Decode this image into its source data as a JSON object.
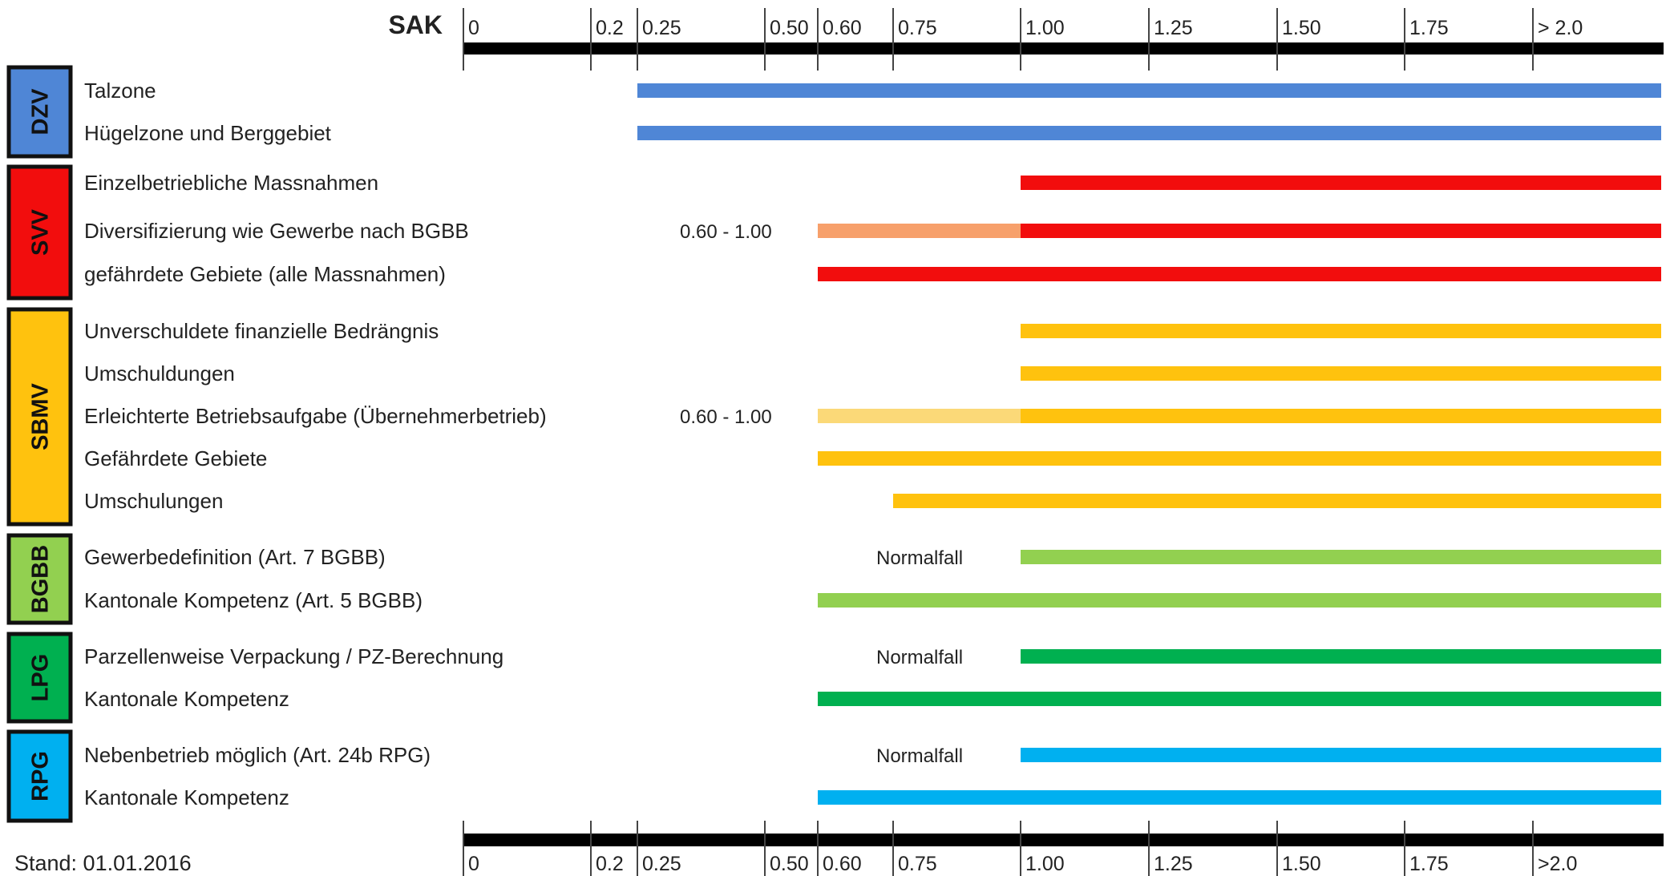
{
  "chart_data": {
    "type": "bar",
    "axis": {
      "label": "SAK",
      "ticks": [
        {
          "value": 0,
          "label": "0"
        },
        {
          "value": 0.2,
          "label": "0.2"
        },
        {
          "value": 0.25,
          "label": "0.25"
        },
        {
          "value": 0.5,
          "label": "0.50"
        },
        {
          "value": 0.6,
          "label": "0.60"
        },
        {
          "value": 0.75,
          "label": "0.75"
        },
        {
          "value": 1.0,
          "label": "1.00"
        },
        {
          "value": 1.25,
          "label": "1.25"
        },
        {
          "value": 1.5,
          "label": "1.50"
        },
        {
          "value": 1.75,
          "label": "1.75"
        },
        {
          "value": 2.0,
          "label": "> 2.0"
        }
      ],
      "bottom_last_tick_label": ">2.0",
      "range": [
        0,
        2.25
      ]
    },
    "groups": [
      {
        "code": "DZV",
        "color": "#4F86D6",
        "rows": [
          {
            "label": "Talzone",
            "segments": [
              {
                "from": 0.25,
                "to": 2.25,
                "color": "#4F86D6"
              }
            ]
          },
          {
            "label": "Hügelzone und Berggebiet",
            "segments": [
              {
                "from": 0.25,
                "to": 2.25,
                "color": "#4F86D6"
              }
            ]
          }
        ]
      },
      {
        "code": "SVV",
        "color": "#F20D0D",
        "rows": [
          {
            "label": "Einzelbetriebliche Massnahmen",
            "segments": [
              {
                "from": 1.0,
                "to": 2.25,
                "color": "#F20D0D"
              }
            ]
          },
          {
            "label": "Diversifizierung wie Gewerbe nach BGBB",
            "annotation": "0.60 - 1.00",
            "segments": [
              {
                "from": 0.6,
                "to": 1.0,
                "color": "#F7A06B"
              },
              {
                "from": 1.0,
                "to": 2.25,
                "color": "#F20D0D"
              }
            ]
          },
          {
            "label": "gefährdete Gebiete (alle Massnahmen)",
            "segments": [
              {
                "from": 0.6,
                "to": 2.25,
                "color": "#F20D0D"
              }
            ]
          }
        ]
      },
      {
        "code": "SBMV",
        "color": "#FFC20E",
        "rows": [
          {
            "label": "Unverschuldete finanzielle Bedrängnis",
            "segments": [
              {
                "from": 1.0,
                "to": 2.25,
                "color": "#FFC20E"
              }
            ]
          },
          {
            "label": "Umschuldungen",
            "segments": [
              {
                "from": 1.0,
                "to": 2.25,
                "color": "#FFC20E"
              }
            ]
          },
          {
            "label": "Erleichterte Betriebsaufgabe (Übernehmerbetrieb)",
            "annotation": "0.60 - 1.00",
            "segments": [
              {
                "from": 0.6,
                "to": 1.0,
                "color": "#FBD978"
              },
              {
                "from": 1.0,
                "to": 2.25,
                "color": "#FFC20E"
              }
            ]
          },
          {
            "label": "Gefährdete Gebiete",
            "segments": [
              {
                "from": 0.6,
                "to": 2.25,
                "color": "#FFC20E"
              }
            ]
          },
          {
            "label": "Umschulungen",
            "segments": [
              {
                "from": 0.75,
                "to": 2.25,
                "color": "#FFC20E"
              }
            ]
          }
        ]
      },
      {
        "code": "BGBB",
        "color": "#92D050",
        "rows": [
          {
            "label": "Gewerbedefinition (Art. 7 BGBB)",
            "annotation": "Normalfall",
            "segments": [
              {
                "from": 1.0,
                "to": 2.25,
                "color": "#92D050"
              }
            ]
          },
          {
            "label": "Kantonale Kompetenz (Art. 5 BGBB)",
            "segments": [
              {
                "from": 0.6,
                "to": 2.25,
                "color": "#92D050"
              }
            ]
          }
        ]
      },
      {
        "code": "LPG",
        "color": "#00B050",
        "rows": [
          {
            "label": "Parzellenweise Verpackung / PZ-Berechnung",
            "annotation": "Normalfall",
            "segments": [
              {
                "from": 1.0,
                "to": 2.25,
                "color": "#00B050"
              }
            ]
          },
          {
            "label": "Kantonale Kompetenz",
            "segments": [
              {
                "from": 0.6,
                "to": 2.25,
                "color": "#00B050"
              }
            ]
          }
        ]
      },
      {
        "code": "RPG",
        "color": "#00B0F0",
        "rows": [
          {
            "label": "Nebenbetrieb möglich (Art. 24b RPG)",
            "annotation": "Normalfall",
            "segments": [
              {
                "from": 1.0,
                "to": 2.25,
                "color": "#00B0F0"
              }
            ]
          },
          {
            "label": "Kantonale Kompetenz",
            "segments": [
              {
                "from": 0.6,
                "to": 2.25,
                "color": "#00B0F0"
              }
            ]
          }
        ]
      }
    ],
    "footer": "Stand: 01.01.2016"
  }
}
